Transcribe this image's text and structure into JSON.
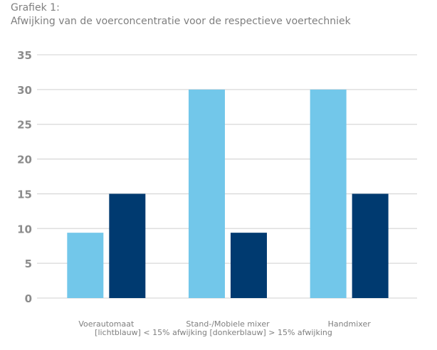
{
  "chart_data": {
    "type": "bar",
    "title": "Grafiek 1:",
    "subtitle": "Afwijking van de voerconcentratie voor de respectieve voertechniek",
    "categories": [
      "Voerautomaat",
      "Stand-/Mobiele mixer",
      "Handmixer"
    ],
    "series": [
      {
        "color": "#72c7ea",
        "values": [
          9.4,
          30,
          30
        ]
      },
      {
        "color": "#003a70",
        "values": [
          15,
          9.4,
          15
        ]
      }
    ],
    "xlabel": "[lichtblauw] < 15% afwijking [donkerblauw] > 15% afwijking",
    "ylabel": "",
    "ylim": [
      0,
      35
    ],
    "yticks": [
      "0",
      "5",
      "10",
      "15",
      "20",
      "25",
      "30",
      "35"
    ],
    "grid": true,
    "gridline_color": "#d9d9d9"
  }
}
